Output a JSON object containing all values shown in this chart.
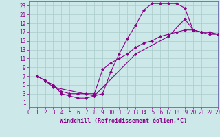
{
  "xlabel": "Windchill (Refroidissement éolien,°C)",
  "bg_color": "#cce8e8",
  "grid_color": "#aacccc",
  "line_color": "#880088",
  "spine_color": "#6666aa",
  "xlim": [
    0,
    23
  ],
  "ylim": [
    0,
    24
  ],
  "xticks": [
    0,
    1,
    2,
    3,
    4,
    5,
    6,
    7,
    8,
    9,
    10,
    11,
    12,
    13,
    14,
    15,
    16,
    17,
    18,
    19,
    20,
    21,
    22,
    23
  ],
  "yticks": [
    1,
    3,
    5,
    7,
    9,
    11,
    13,
    15,
    17,
    19,
    21,
    23
  ],
  "curve1_x": [
    1,
    2,
    3,
    4,
    5,
    6,
    7,
    8,
    9,
    10,
    11,
    12,
    13,
    14,
    15,
    16,
    17,
    18,
    19,
    20,
    21,
    22,
    23
  ],
  "curve1_y": [
    7,
    6,
    5,
    3,
    2.5,
    2,
    2,
    2.5,
    3,
    8,
    12,
    15.5,
    18.5,
    22,
    23.5,
    23.5,
    23.5,
    23.5,
    22.5,
    17.5,
    17,
    16.5,
    16.5
  ],
  "curve2_x": [
    1,
    2,
    3,
    4,
    5,
    6,
    7,
    8,
    9,
    10,
    11,
    12,
    13,
    14,
    15,
    16,
    17,
    18,
    19,
    20,
    21,
    22,
    23
  ],
  "curve2_y": [
    7,
    6,
    5,
    3.5,
    3,
    3,
    3,
    3,
    8.5,
    10,
    11,
    12,
    13.5,
    14.5,
    15,
    16,
    16.5,
    17,
    17.5,
    17.5,
    17,
    17,
    16.5
  ],
  "curve3_x": [
    1,
    2,
    3,
    8,
    13,
    17,
    19,
    20,
    21,
    22,
    23
  ],
  "curve3_y": [
    7,
    6,
    4.5,
    2.5,
    12,
    16,
    20,
    17.5,
    17,
    17,
    16.5
  ],
  "tick_fontsize": 5.5,
  "label_fontsize": 6.0,
  "lw": 0.8,
  "ms": 2.5
}
